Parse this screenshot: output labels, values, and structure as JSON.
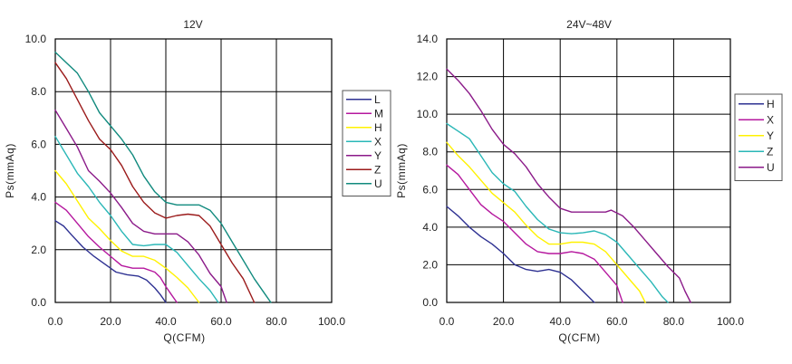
{
  "chart_data": [
    {
      "type": "line",
      "title": "12V",
      "xlabel": "Q(CFM)",
      "ylabel": "Ps(mmAq)",
      "xlim": [
        0,
        100
      ],
      "ylim": [
        0,
        10
      ],
      "x_ticks": [
        "0.0",
        "20.0",
        "40.0",
        "60.0",
        "80.0",
        "100.0"
      ],
      "y_ticks": [
        "0.0",
        "2.0",
        "4.0",
        "6.0",
        "8.0",
        "10.0"
      ],
      "grid": true,
      "legend": "right",
      "series": [
        {
          "name": "L",
          "color": "#2e3192",
          "points": [
            [
              0,
              3.1
            ],
            [
              3,
              2.9
            ],
            [
              6,
              2.55
            ],
            [
              10,
              2.1
            ],
            [
              14,
              1.75
            ],
            [
              18,
              1.45
            ],
            [
              22,
              1.15
            ],
            [
              26,
              1.05
            ],
            [
              30,
              1.0
            ],
            [
              33,
              0.85
            ],
            [
              36,
              0.55
            ],
            [
              38,
              0.3
            ],
            [
              40,
              0.0
            ]
          ]
        },
        {
          "name": "M",
          "color": "#b5179e",
          "points": [
            [
              0,
              3.8
            ],
            [
              4,
              3.5
            ],
            [
              8,
              3.0
            ],
            [
              12,
              2.5
            ],
            [
              16,
              2.1
            ],
            [
              20,
              1.75
            ],
            [
              24,
              1.4
            ],
            [
              28,
              1.3
            ],
            [
              32,
              1.3
            ],
            [
              36,
              1.15
            ],
            [
              38,
              0.95
            ],
            [
              40,
              0.6
            ],
            [
              42,
              0.3
            ],
            [
              44,
              0.0
            ]
          ]
        },
        {
          "name": "H",
          "color": "#fff200",
          "points": [
            [
              0,
              5.0
            ],
            [
              4,
              4.5
            ],
            [
              8,
              3.85
            ],
            [
              12,
              3.2
            ],
            [
              16,
              2.8
            ],
            [
              20,
              2.35
            ],
            [
              24,
              1.95
            ],
            [
              28,
              1.75
            ],
            [
              32,
              1.75
            ],
            [
              36,
              1.6
            ],
            [
              40,
              1.3
            ],
            [
              44,
              0.95
            ],
            [
              48,
              0.55
            ],
            [
              52,
              0.0
            ]
          ]
        },
        {
          "name": "X",
          "color": "#2ab7b7",
          "points": [
            [
              0,
              6.3
            ],
            [
              4,
              5.6
            ],
            [
              8,
              4.9
            ],
            [
              12,
              4.4
            ],
            [
              16,
              3.8
            ],
            [
              20,
              3.3
            ],
            [
              24,
              2.7
            ],
            [
              28,
              2.2
            ],
            [
              32,
              2.15
            ],
            [
              36,
              2.2
            ],
            [
              40,
              2.2
            ],
            [
              44,
              1.9
            ],
            [
              48,
              1.4
            ],
            [
              52,
              0.9
            ],
            [
              56,
              0.45
            ],
            [
              59,
              0.0
            ]
          ]
        },
        {
          "name": "Y",
          "color": "#8b1a89",
          "points": [
            [
              0,
              7.3
            ],
            [
              4,
              6.6
            ],
            [
              8,
              5.9
            ],
            [
              12,
              5.0
            ],
            [
              16,
              4.6
            ],
            [
              20,
              4.15
            ],
            [
              24,
              3.6
            ],
            [
              28,
              3.0
            ],
            [
              32,
              2.7
            ],
            [
              36,
              2.6
            ],
            [
              40,
              2.6
            ],
            [
              44,
              2.6
            ],
            [
              48,
              2.3
            ],
            [
              52,
              1.8
            ],
            [
              56,
              1.1
            ],
            [
              60,
              0.6
            ],
            [
              62,
              0.0
            ]
          ]
        },
        {
          "name": "Z",
          "color": "#9b1b1b",
          "points": [
            [
              0,
              9.1
            ],
            [
              4,
              8.5
            ],
            [
              8,
              7.7
            ],
            [
              12,
              6.9
            ],
            [
              16,
              6.2
            ],
            [
              20,
              5.8
            ],
            [
              24,
              5.2
            ],
            [
              28,
              4.4
            ],
            [
              32,
              3.8
            ],
            [
              36,
              3.4
            ],
            [
              40,
              3.2
            ],
            [
              44,
              3.3
            ],
            [
              48,
              3.35
            ],
            [
              52,
              3.3
            ],
            [
              56,
              2.9
            ],
            [
              60,
              2.2
            ],
            [
              64,
              1.5
            ],
            [
              68,
              0.9
            ],
            [
              72,
              0.0
            ]
          ]
        },
        {
          "name": "U",
          "color": "#118a7e",
          "points": [
            [
              0,
              9.5
            ],
            [
              4,
              9.1
            ],
            [
              8,
              8.7
            ],
            [
              12,
              8.0
            ],
            [
              16,
              7.2
            ],
            [
              20,
              6.7
            ],
            [
              24,
              6.2
            ],
            [
              28,
              5.6
            ],
            [
              32,
              4.8
            ],
            [
              36,
              4.2
            ],
            [
              40,
              3.8
            ],
            [
              44,
              3.7
            ],
            [
              48,
              3.7
            ],
            [
              52,
              3.7
            ],
            [
              56,
              3.5
            ],
            [
              60,
              3.0
            ],
            [
              64,
              2.3
            ],
            [
              68,
              1.6
            ],
            [
              72,
              0.9
            ],
            [
              76,
              0.3
            ],
            [
              78,
              0.0
            ]
          ]
        }
      ]
    },
    {
      "type": "line",
      "title": "24V~48V",
      "xlabel": "Q(CFM)",
      "ylabel": "Ps(mmAq)",
      "xlim": [
        0,
        100
      ],
      "ylim": [
        0,
        14
      ],
      "x_ticks": [
        "0.0",
        "20.0",
        "40.0",
        "60.0",
        "80.0",
        "100.0"
      ],
      "y_ticks": [
        "0.0",
        "2.0",
        "4.0",
        "6.0",
        "8.0",
        "10.0",
        "12.0",
        "14.0"
      ],
      "grid": true,
      "legend": "right",
      "series": [
        {
          "name": "H",
          "color": "#2e3192",
          "points": [
            [
              0,
              5.1
            ],
            [
              4,
              4.6
            ],
            [
              8,
              4.0
            ],
            [
              12,
              3.5
            ],
            [
              16,
              3.1
            ],
            [
              20,
              2.6
            ],
            [
              24,
              2.0
            ],
            [
              28,
              1.75
            ],
            [
              32,
              1.65
            ],
            [
              36,
              1.75
            ],
            [
              40,
              1.6
            ],
            [
              44,
              1.2
            ],
            [
              48,
              0.6
            ],
            [
              52,
              0.0
            ]
          ]
        },
        {
          "name": "X",
          "color": "#b5179e",
          "points": [
            [
              0,
              7.3
            ],
            [
              4,
              6.8
            ],
            [
              8,
              6.0
            ],
            [
              12,
              5.2
            ],
            [
              16,
              4.7
            ],
            [
              20,
              4.3
            ],
            [
              24,
              3.7
            ],
            [
              28,
              3.1
            ],
            [
              32,
              2.7
            ],
            [
              36,
              2.6
            ],
            [
              40,
              2.6
            ],
            [
              44,
              2.7
            ],
            [
              48,
              2.6
            ],
            [
              52,
              2.3
            ],
            [
              56,
              1.6
            ],
            [
              60,
              0.9
            ],
            [
              62,
              0.0
            ]
          ]
        },
        {
          "name": "Y",
          "color": "#fff200",
          "points": [
            [
              0,
              8.5
            ],
            [
              4,
              7.8
            ],
            [
              8,
              7.2
            ],
            [
              12,
              6.5
            ],
            [
              16,
              5.8
            ],
            [
              20,
              5.3
            ],
            [
              24,
              4.8
            ],
            [
              28,
              4.1
            ],
            [
              32,
              3.5
            ],
            [
              36,
              3.1
            ],
            [
              40,
              3.1
            ],
            [
              44,
              3.2
            ],
            [
              48,
              3.2
            ],
            [
              52,
              3.1
            ],
            [
              56,
              2.7
            ],
            [
              60,
              2.0
            ],
            [
              64,
              1.3
            ],
            [
              68,
              0.6
            ],
            [
              70,
              0.0
            ]
          ]
        },
        {
          "name": "Z",
          "color": "#2ab7b7",
          "points": [
            [
              0,
              9.5
            ],
            [
              4,
              9.1
            ],
            [
              8,
              8.7
            ],
            [
              12,
              7.8
            ],
            [
              16,
              6.9
            ],
            [
              20,
              6.3
            ],
            [
              24,
              5.9
            ],
            [
              28,
              5.1
            ],
            [
              32,
              4.4
            ],
            [
              36,
              3.9
            ],
            [
              40,
              3.7
            ],
            [
              44,
              3.65
            ],
            [
              48,
              3.7
            ],
            [
              52,
              3.8
            ],
            [
              56,
              3.6
            ],
            [
              60,
              3.2
            ],
            [
              64,
              2.5
            ],
            [
              68,
              1.8
            ],
            [
              72,
              1.1
            ],
            [
              76,
              0.3
            ],
            [
              78,
              0.0
            ]
          ]
        },
        {
          "name": "U",
          "color": "#8b1a89",
          "points": [
            [
              0,
              12.4
            ],
            [
              4,
              11.8
            ],
            [
              8,
              11.1
            ],
            [
              12,
              10.2
            ],
            [
              16,
              9.2
            ],
            [
              20,
              8.4
            ],
            [
              24,
              7.9
            ],
            [
              28,
              7.2
            ],
            [
              32,
              6.3
            ],
            [
              36,
              5.6
            ],
            [
              40,
              5.0
            ],
            [
              44,
              4.8
            ],
            [
              48,
              4.8
            ],
            [
              52,
              4.8
            ],
            [
              56,
              4.8
            ],
            [
              58,
              4.9
            ],
            [
              62,
              4.6
            ],
            [
              66,
              4.0
            ],
            [
              70,
              3.3
            ],
            [
              74,
              2.6
            ],
            [
              78,
              1.9
            ],
            [
              82,
              1.3
            ],
            [
              84,
              0.6
            ],
            [
              86,
              0.0
            ]
          ]
        }
      ]
    }
  ]
}
